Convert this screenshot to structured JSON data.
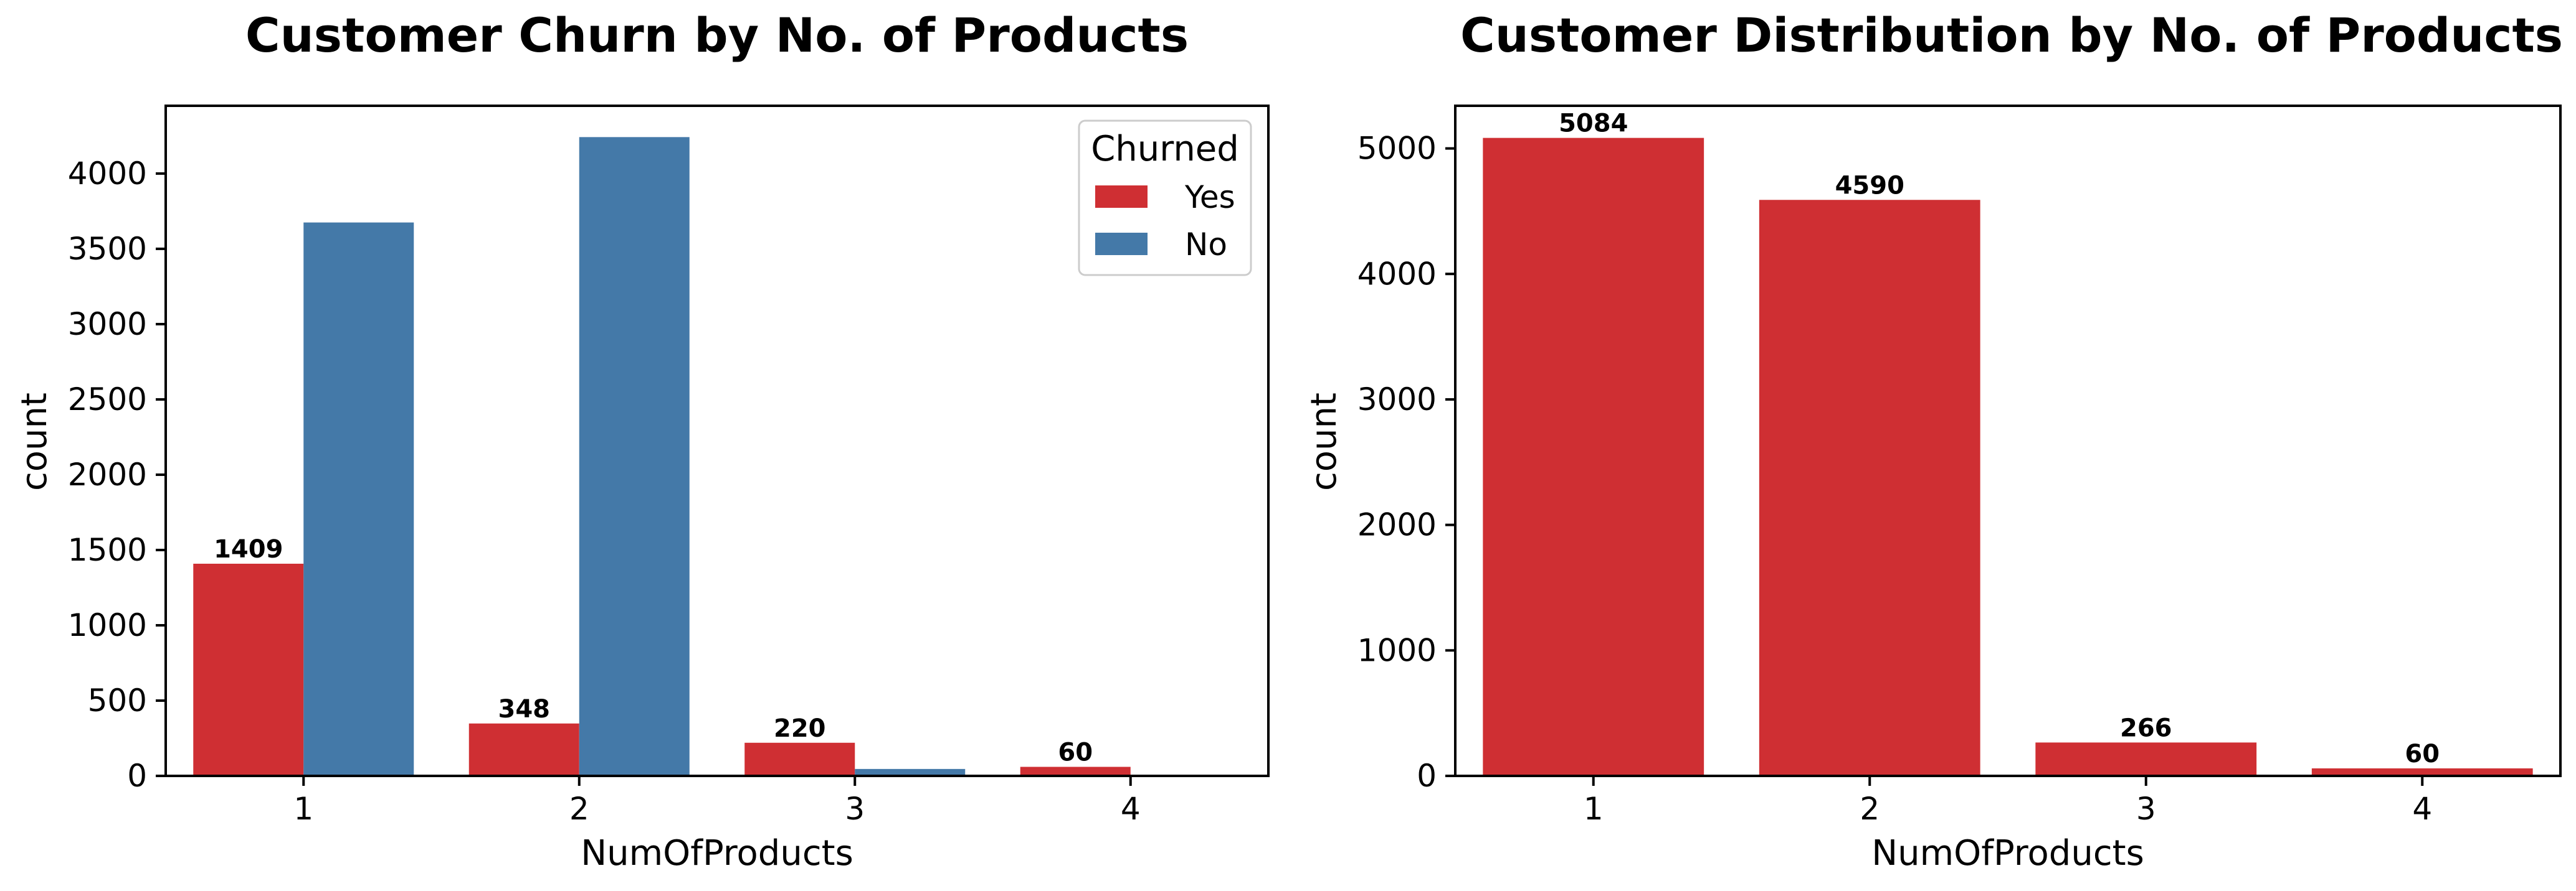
{
  "chart_data": [
    {
      "type": "bar",
      "title": "Customer Churn by No. of Products",
      "xlabel": "NumOfProducts",
      "ylabel": "count",
      "categories": [
        "1",
        "2",
        "3",
        "4"
      ],
      "ylim": [
        0,
        4450
      ],
      "yticks": [
        0,
        500,
        1000,
        1500,
        2000,
        2500,
        3000,
        3500,
        4000
      ],
      "legend": {
        "title": "Churned",
        "placement": "top-right"
      },
      "series": [
        {
          "name": "Yes",
          "color": "#cf2f33",
          "values": [
            1409,
            348,
            220,
            60
          ],
          "data_labels": [
            "1409",
            "348",
            "220",
            "60"
          ]
        },
        {
          "name": "No",
          "color": "#4479a8",
          "values": [
            3675,
            4242,
            46,
            0
          ]
        }
      ],
      "grid": false
    },
    {
      "type": "bar",
      "title": "Customer Distribution by No. of Products",
      "xlabel": "NumOfProducts",
      "ylabel": "count",
      "categories": [
        "1",
        "2",
        "3",
        "4"
      ],
      "ylim": [
        0,
        5340
      ],
      "yticks": [
        0,
        1000,
        2000,
        3000,
        4000,
        5000
      ],
      "series": [
        {
          "color": "#cf2f33",
          "values": [
            5084,
            4590,
            266,
            60
          ],
          "data_labels": [
            "5084",
            "4590",
            "266",
            "60"
          ]
        }
      ],
      "grid": false
    }
  ]
}
